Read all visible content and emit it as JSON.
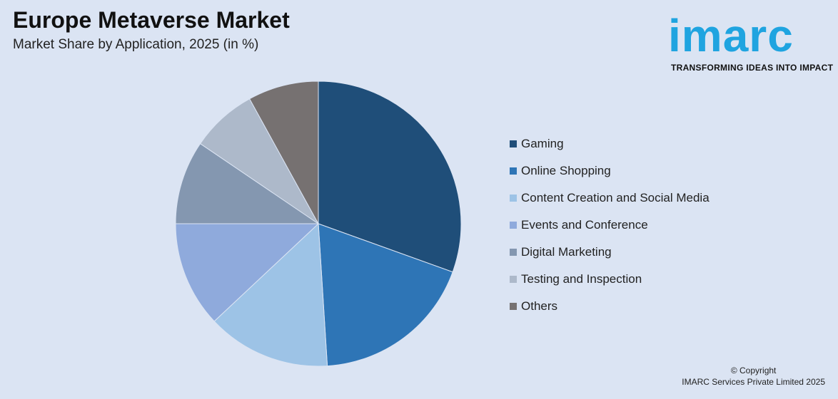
{
  "header": {
    "title": "Europe Metaverse Market",
    "subtitle": "Market Share by Application, 2025 (in %)"
  },
  "logo": {
    "word": "imarc",
    "tagline": "TRANSFORMING IDEAS INTO IMPACT"
  },
  "footer": {
    "line1": "© Copyright",
    "line2": "IMARC Services Private Limited 2025"
  },
  "chart_data": {
    "type": "pie",
    "title": "Europe Metaverse Market",
    "subtitle": "Market Share by Application, 2025 (in %)",
    "categories": [
      "Gaming",
      "Online Shopping",
      "Content Creation and Social Media",
      "Events and Conference",
      "Digital Marketing",
      "Testing and Inspection",
      "Others"
    ],
    "values": [
      30.5,
      18.5,
      14.0,
      12.0,
      9.5,
      7.5,
      8.0
    ],
    "colors": [
      "#1f4e79",
      "#2e75b6",
      "#9dc3e6",
      "#8faadc",
      "#8497b0",
      "#adb9ca",
      "#767171"
    ],
    "legend_position": "right"
  }
}
